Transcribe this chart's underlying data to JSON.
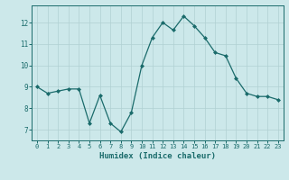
{
  "x": [
    0,
    1,
    2,
    3,
    4,
    5,
    6,
    7,
    8,
    9,
    10,
    11,
    12,
    13,
    14,
    15,
    16,
    17,
    18,
    19,
    20,
    21,
    22,
    23
  ],
  "y": [
    9.0,
    8.7,
    8.8,
    8.9,
    8.9,
    7.3,
    8.6,
    7.3,
    6.9,
    7.8,
    10.0,
    11.3,
    12.0,
    11.65,
    12.3,
    11.85,
    11.3,
    10.6,
    10.45,
    9.4,
    8.7,
    8.55,
    8.55,
    8.4
  ],
  "line_color": "#1a6b6b",
  "marker": "D",
  "marker_size": 2,
  "bg_color": "#cce8ea",
  "grid_color": "#b0d0d3",
  "xlabel": "Humidex (Indice chaleur)",
  "xlabel_color": "#1a6b6b",
  "tick_color": "#1a6b6b",
  "xlim": [
    -0.5,
    23.5
  ],
  "ylim": [
    6.5,
    12.8
  ],
  "yticks": [
    7,
    8,
    9,
    10,
    11,
    12
  ],
  "xticks": [
    0,
    1,
    2,
    3,
    4,
    5,
    6,
    7,
    8,
    9,
    10,
    11,
    12,
    13,
    14,
    15,
    16,
    17,
    18,
    19,
    20,
    21,
    22,
    23
  ]
}
